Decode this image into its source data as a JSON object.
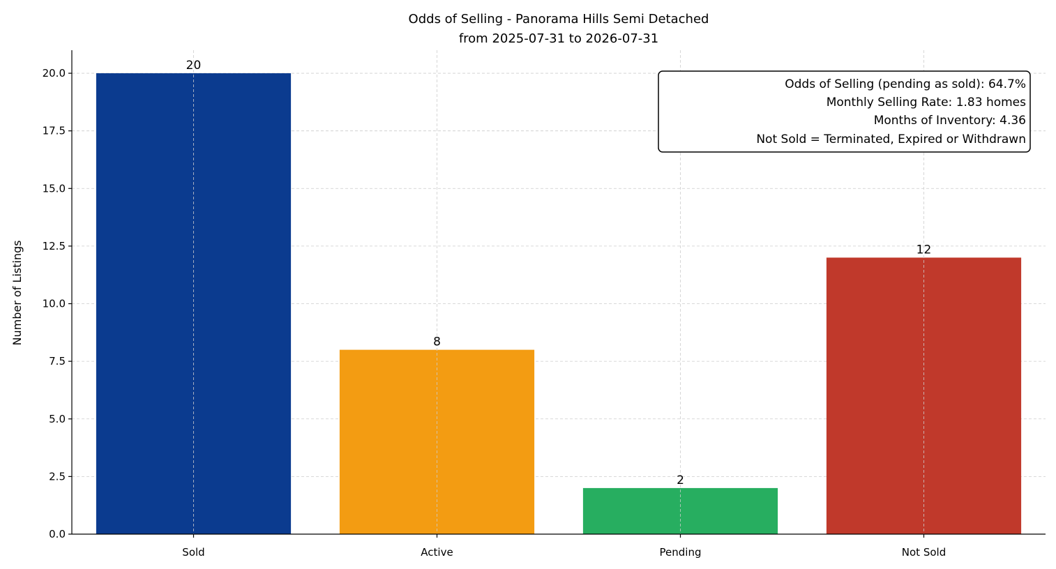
{
  "chart_data": {
    "type": "bar",
    "title": "Odds of Selling - Panorama Hills Semi Detached",
    "subtitle": "from 2025-07-31 to 2026-07-31",
    "xlabel": "",
    "ylabel": "Number of Listings",
    "categories": [
      "Sold",
      "Active",
      "Pending",
      "Not Sold"
    ],
    "values": [
      20,
      8,
      2,
      12
    ],
    "value_labels": [
      "20",
      "8",
      "2",
      "12"
    ],
    "colors": [
      "#0b3b8f",
      "#f39c12",
      "#27ae60",
      "#c0392b"
    ],
    "ylim": [
      0,
      21
    ],
    "yticks": [
      0,
      2.5,
      5,
      7.5,
      10,
      12.5,
      15,
      17.5,
      20
    ],
    "ytick_labels": [
      "0.0",
      "2.5",
      "5.0",
      "7.5",
      "10.0",
      "12.5",
      "15.0",
      "17.5",
      "20.0"
    ],
    "grid": true,
    "annotation": {
      "placement": "top-right",
      "lines": [
        "Odds of Selling (pending as sold): 64.7%",
        "Monthly Selling Rate: 1.83 homes",
        "Months of Inventory: 4.36",
        "Not Sold = Terminated, Expired or Withdrawn"
      ]
    }
  }
}
